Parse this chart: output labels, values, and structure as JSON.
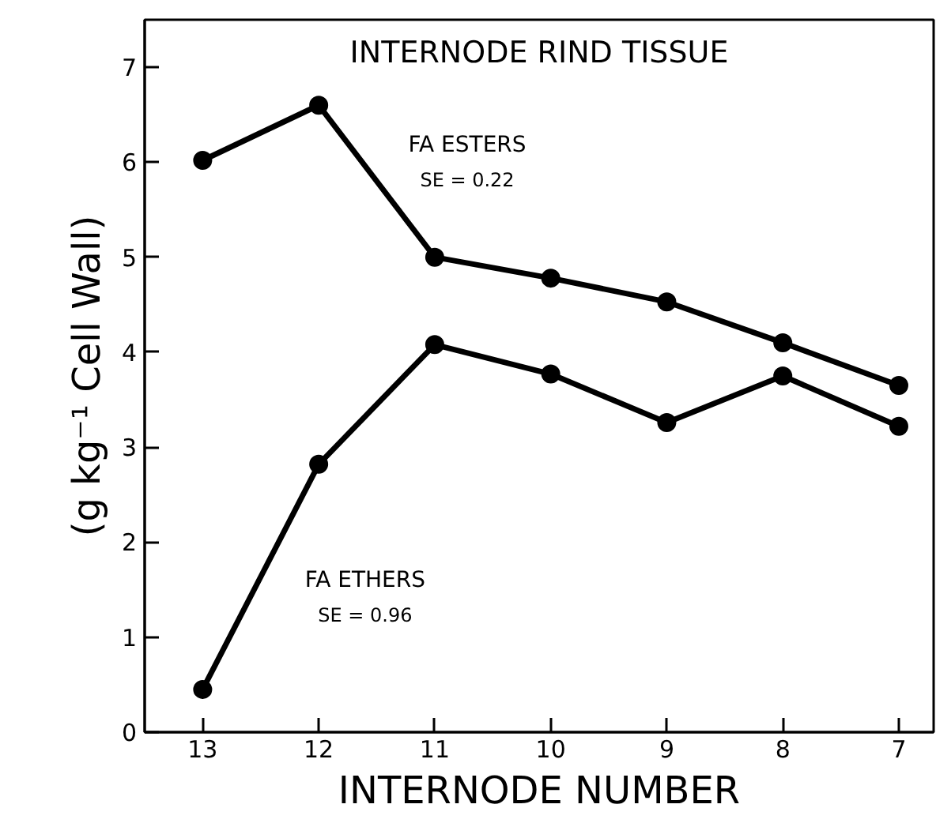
{
  "chart_data": {
    "type": "line",
    "title": "INTERNODE RIND TISSUE",
    "xlabel": "INTERNODE NUMBER",
    "ylabel": "(g kg⁻¹ Cell Wall)",
    "x": [
      13,
      12,
      11,
      10,
      9,
      8,
      7
    ],
    "series": [
      {
        "name": "FA ESTERS",
        "color": "#000000",
        "values": [
          6.02,
          6.6,
          5.0,
          4.78,
          4.53,
          4.1,
          3.65
        ]
      },
      {
        "name": "FA ETHERS",
        "color": "#000000",
        "values": [
          0.45,
          2.82,
          4.08,
          3.77,
          3.26,
          3.75,
          3.22
        ]
      }
    ],
    "annotations": [
      "SE = 0.22",
      "SE = 0.96"
    ],
    "xlim": [
      13.5,
      6.7
    ],
    "ylim": [
      0,
      7.5
    ],
    "xticks": [
      13,
      12,
      11,
      10,
      9,
      8,
      7
    ],
    "yticks": [
      0,
      1,
      2,
      3,
      4,
      5,
      6,
      7
    ],
    "grid": false,
    "legend": false,
    "marker": "circle",
    "line_style": "solid"
  }
}
